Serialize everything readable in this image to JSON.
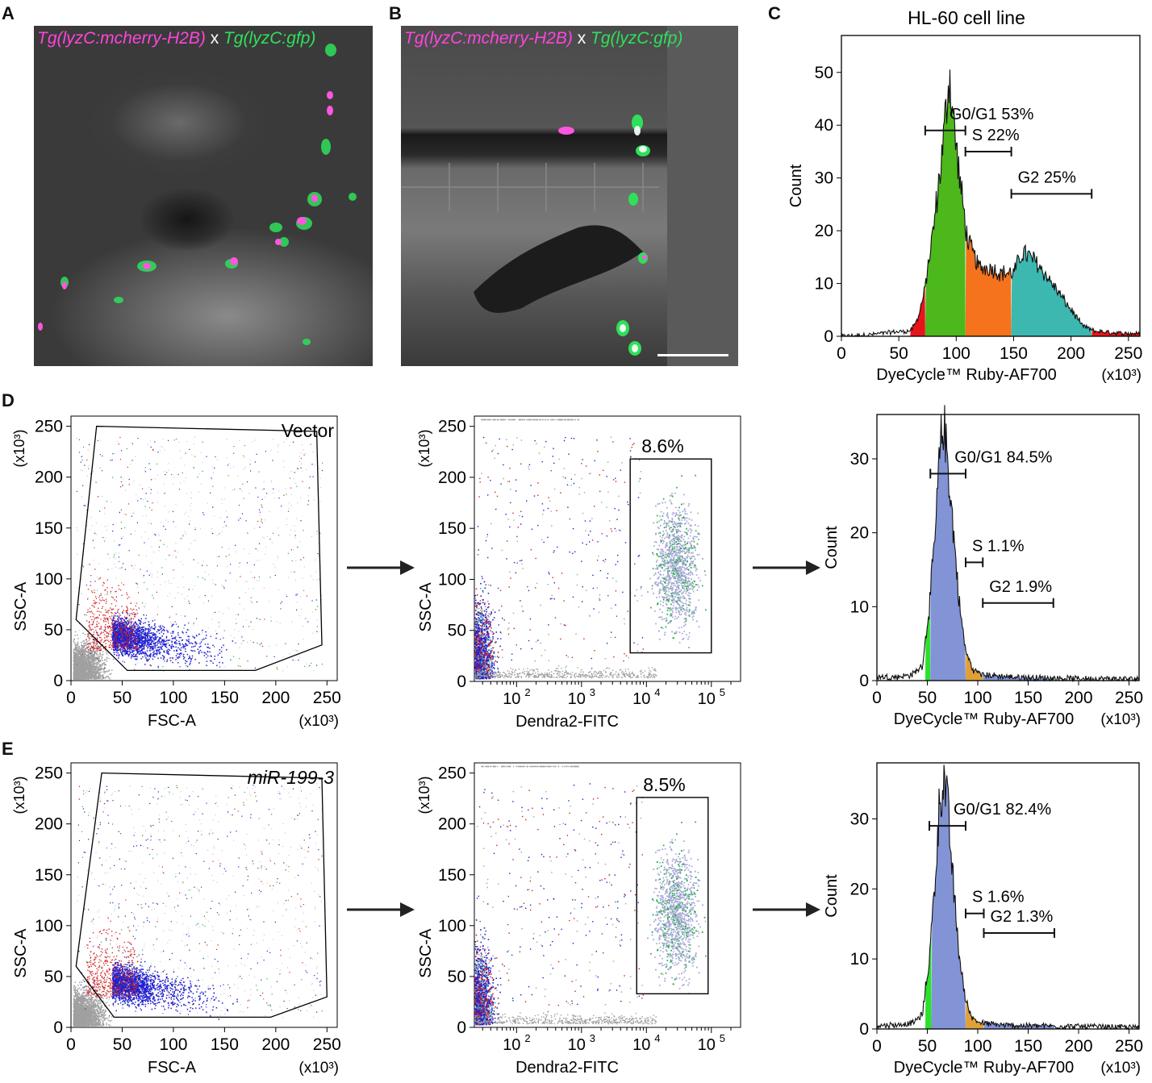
{
  "panels": {
    "a": "A",
    "b": "B",
    "c": "C",
    "d": "D",
    "e": "E"
  },
  "microscopy": {
    "caption_magenta": "Tg(lyzC:mcherry-H2B)",
    "caption_x": "x",
    "caption_green": "Tg(lyzC:gfp)"
  },
  "histograms": [
    {
      "id": "c",
      "title": "HL-60 cell line",
      "xlabel": "DyeCycle™ Ruby-AF700",
      "xunit": "(x10³)",
      "ylabel": "Count",
      "xlim": [
        0,
        260
      ],
      "ylim": [
        0,
        57
      ],
      "xticks": [
        0,
        50,
        100,
        150,
        200,
        250
      ],
      "yticks": [
        0,
        10,
        20,
        30,
        40,
        50
      ],
      "gates": [
        {
          "label": "G0/G1 53%",
          "x1": 73,
          "x2": 108,
          "y": 39
        },
        {
          "label": "S 22%",
          "x1": 108,
          "x2": 148,
          "y": 35
        },
        {
          "label": "G2 25%",
          "x1": 148,
          "x2": 218,
          "y": 27
        }
      ],
      "regions": [
        {
          "name": "pre",
          "x1": 60,
          "x2": 73,
          "color": "#e8141c"
        },
        {
          "name": "G0/G1",
          "x1": 73,
          "x2": 108,
          "color": "#4cb81c"
        },
        {
          "name": "S",
          "x1": 108,
          "x2": 148,
          "color": "#f4731c"
        },
        {
          "name": "G2",
          "x1": 148,
          "x2": 218,
          "color": "#3cb8b0"
        },
        {
          "name": "post",
          "x1": 218,
          "x2": 260,
          "color": "#e8141c"
        }
      ],
      "profile": [
        [
          0,
          0
        ],
        [
          25,
          0.3
        ],
        [
          45,
          0.8
        ],
        [
          60,
          1
        ],
        [
          66,
          3
        ],
        [
          72,
          8
        ],
        [
          80,
          20
        ],
        [
          88,
          35
        ],
        [
          94,
          50
        ],
        [
          98,
          40
        ],
        [
          104,
          28
        ],
        [
          110,
          18
        ],
        [
          120,
          13
        ],
        [
          130,
          13
        ],
        [
          138,
          12
        ],
        [
          145,
          12
        ],
        [
          150,
          12
        ],
        [
          158,
          16
        ],
        [
          170,
          14
        ],
        [
          180,
          11
        ],
        [
          190,
          8
        ],
        [
          200,
          5
        ],
        [
          210,
          2
        ],
        [
          220,
          1
        ],
        [
          240,
          0.6
        ],
        [
          260,
          0.5
        ]
      ]
    },
    {
      "id": "d",
      "xlabel": "DyeCycle™ Ruby-AF700",
      "xunit": "(x10³)",
      "ylabel": "Count",
      "xlim": [
        0,
        260
      ],
      "ylim": [
        0,
        36
      ],
      "xticks": [
        0,
        50,
        100,
        150,
        200,
        250
      ],
      "yticks": [
        0,
        10,
        20,
        30
      ],
      "gates": [
        {
          "label": "G0/G1 84.5%",
          "x1": 53,
          "x2": 88,
          "y": 28
        },
        {
          "label": "S 1.1%",
          "x1": 88,
          "x2": 105,
          "y": 16
        },
        {
          "label": "G2 1.9%",
          "x1": 105,
          "x2": 175,
          "y": 10.5
        }
      ],
      "regions": [
        {
          "name": "pre",
          "x1": 48,
          "x2": 53,
          "color": "#2ce02c"
        },
        {
          "name": "G0/G1",
          "x1": 53,
          "x2": 88,
          "color": "#8294d6"
        },
        {
          "name": "S",
          "x1": 88,
          "x2": 105,
          "color": "#e0a038"
        },
        {
          "name": "G2",
          "x1": 105,
          "x2": 175,
          "color": "#8294d6"
        }
      ],
      "profile": [
        [
          0,
          0.5
        ],
        [
          20,
          0.5
        ],
        [
          35,
          0.8
        ],
        [
          45,
          2
        ],
        [
          52,
          10
        ],
        [
          58,
          20
        ],
        [
          62,
          30
        ],
        [
          66,
          35
        ],
        [
          70,
          30
        ],
        [
          76,
          20
        ],
        [
          82,
          10
        ],
        [
          88,
          4
        ],
        [
          95,
          1.5
        ],
        [
          105,
          0.8
        ],
        [
          130,
          0.5
        ],
        [
          180,
          0.3
        ],
        [
          260,
          0.2
        ]
      ]
    },
    {
      "id": "e",
      "xlabel": "DyeCycle™ Ruby-AF700",
      "xunit": "(x10³)",
      "ylabel": "Count",
      "xlim": [
        0,
        260
      ],
      "ylim": [
        0,
        38
      ],
      "xticks": [
        0,
        50,
        100,
        150,
        200,
        250
      ],
      "yticks": [
        0,
        10,
        20,
        30
      ],
      "gates": [
        {
          "label": "G0/G1 82.4%",
          "x1": 52,
          "x2": 88,
          "y": 29
        },
        {
          "label": "S 1.6%",
          "x1": 88,
          "x2": 106,
          "y": 16.5
        },
        {
          "label": "G2 1.3%",
          "x1": 106,
          "x2": 176,
          "y": 13.7
        }
      ],
      "regions": [
        {
          "name": "pre",
          "x1": 48,
          "x2": 54,
          "color": "#2ce02c"
        },
        {
          "name": "G0/G1",
          "x1": 54,
          "x2": 88,
          "color": "#8294d6"
        },
        {
          "name": "S",
          "x1": 88,
          "x2": 106,
          "color": "#e0a038"
        },
        {
          "name": "G2",
          "x1": 106,
          "x2": 176,
          "color": "#8294d6"
        }
      ],
      "profile": [
        [
          0,
          0.5
        ],
        [
          20,
          0.6
        ],
        [
          35,
          0.8
        ],
        [
          45,
          2
        ],
        [
          52,
          10
        ],
        [
          58,
          22
        ],
        [
          62,
          32
        ],
        [
          66,
          36
        ],
        [
          70,
          32
        ],
        [
          76,
          20
        ],
        [
          82,
          10
        ],
        [
          88,
          4
        ],
        [
          95,
          1.5
        ],
        [
          105,
          0.8
        ],
        [
          130,
          0.5
        ],
        [
          180,
          0.4
        ],
        [
          260,
          0.2
        ]
      ]
    }
  ],
  "scatters_fsc": [
    {
      "id": "d1",
      "label": "Vector",
      "label_italic": false,
      "xlabel": "FSC-A",
      "ylabel": "SSC-A",
      "yunit": "(x10³)",
      "xunit": "(x10³)",
      "xlim": [
        0,
        260
      ],
      "ylim": [
        0,
        260
      ],
      "xticks": [
        0,
        50,
        100,
        150,
        200,
        250
      ],
      "yticks": [
        0,
        50,
        100,
        150,
        200,
        250
      ],
      "gate_polygon": [
        [
          5,
          60
        ],
        [
          25,
          250
        ],
        [
          240,
          245
        ],
        [
          245,
          35
        ],
        [
          180,
          10
        ],
        [
          55,
          10
        ]
      ]
    },
    {
      "id": "e1",
      "label": "miR-199-3",
      "label_italic": true,
      "xlabel": "FSC-A",
      "ylabel": "SSC-A",
      "yunit": "(x10³)",
      "xunit": "(x10³)",
      "xlim": [
        0,
        260
      ],
      "ylim": [
        0,
        260
      ],
      "xticks": [
        0,
        50,
        100,
        150,
        200,
        250
      ],
      "yticks": [
        0,
        50,
        100,
        150,
        200,
        250
      ],
      "gate_polygon": [
        [
          5,
          60
        ],
        [
          30,
          250
        ],
        [
          245,
          245
        ],
        [
          250,
          30
        ],
        [
          195,
          10
        ],
        [
          42,
          10
        ]
      ]
    }
  ],
  "scatters_fitc": [
    {
      "id": "d2",
      "gate_label": "8.6%",
      "xlabel": "Dendra2-FITC",
      "ylabel": "SSC-A",
      "yunit": "(x10³)",
      "yticks": [
        0,
        50,
        100,
        150,
        200,
        250
      ],
      "xticks_exp": [
        2,
        3,
        4,
        5
      ],
      "xtick_base": "10",
      "gate_box": {
        "xlog1": 3.75,
        "xlog2": 5.0,
        "y1": 28,
        "y2": 218
      }
    },
    {
      "id": "e2",
      "gate_label": "8.5%",
      "xlabel": "Dendra2-FITC",
      "ylabel": "SSC-A",
      "yunit": "(x10³)",
      "yticks": [
        0,
        50,
        100,
        150,
        200,
        250
      ],
      "xticks_exp": [
        2,
        3,
        4,
        5
      ],
      "xtick_base": "10",
      "gate_box": {
        "xlog1": 3.85,
        "xlog2": 4.95,
        "y1": 33,
        "y2": 226
      }
    }
  ],
  "colors": {
    "gate": "#000000",
    "axis": "#000000",
    "grey": "#a0a0a0",
    "blue": "#2020d0",
    "red": "#d02020",
    "green": "#20b040",
    "lavender": "#a8a8d8"
  }
}
